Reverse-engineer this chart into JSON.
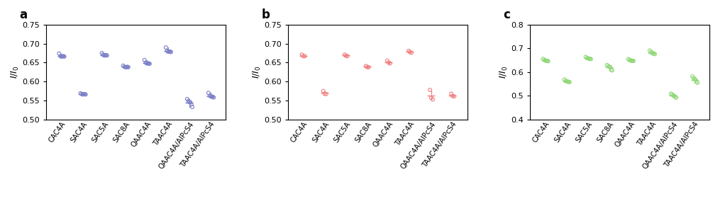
{
  "categories": [
    "CAC4A",
    "SAC4A",
    "SAC5A",
    "SAC8A",
    "QAAC4A",
    "TAAC4A",
    "QAAC4A/AlPcS4",
    "TAAC4A/AlPcS4"
  ],
  "panel_a": {
    "label": "a",
    "color": "#7b80c8",
    "ylim": [
      0.5,
      0.75
    ],
    "yticks": [
      0.5,
      0.55,
      0.6,
      0.65,
      0.7,
      0.75
    ],
    "data": {
      "CAC4A": [
        0.674,
        0.667,
        0.666,
        0.667,
        0.667,
        0.666
      ],
      "SAC4A": [
        0.569,
        0.567,
        0.566,
        0.567,
        0.567,
        0.566
      ],
      "SAC5A": [
        0.675,
        0.671,
        0.669,
        0.669,
        0.67,
        0.669
      ],
      "SAC8A": [
        0.642,
        0.639,
        0.638,
        0.638,
        0.639,
        0.638
      ],
      "QAAC4A": [
        0.657,
        0.65,
        0.648,
        0.648,
        0.648,
        0.647
      ],
      "TAAC4A": [
        0.69,
        0.681,
        0.679,
        0.679,
        0.679,
        0.678
      ],
      "QAAC4A/AlPcS4": [
        0.554,
        0.549,
        0.546,
        0.545,
        0.54,
        0.533
      ],
      "TAAC4A/AlPcS4": [
        0.57,
        0.563,
        0.561,
        0.56,
        0.56,
        0.558
      ]
    },
    "means": {
      "CAC4A": 0.668,
      "SAC4A": 0.567,
      "SAC5A": 0.67,
      "SAC8A": 0.639,
      "QAAC4A": 0.649,
      "TAAC4A": 0.68,
      "QAAC4A/AlPcS4": 0.545,
      "TAAC4A/AlPcS4": 0.562
    }
  },
  "panel_b": {
    "label": "b",
    "color": "#f08080",
    "ylim": [
      0.5,
      0.75
    ],
    "yticks": [
      0.5,
      0.55,
      0.6,
      0.65,
      0.7,
      0.75
    ],
    "data": {
      "CAC4A": [
        0.671,
        0.667,
        0.667
      ],
      "SAC4A": [
        0.575,
        0.568,
        0.567
      ],
      "SAC5A": [
        0.671,
        0.668,
        0.667
      ],
      "SAC8A": [
        0.641,
        0.638,
        0.638
      ],
      "QAAC4A": [
        0.655,
        0.65,
        0.648
      ],
      "TAAC4A": [
        0.681,
        0.678,
        0.676
      ],
      "QAAC4A/AlPcS4": [
        0.578,
        0.557,
        0.553
      ],
      "TAAC4A/AlPcS4": [
        0.568,
        0.562,
        0.561
      ]
    },
    "means": {
      "CAC4A": 0.668,
      "SAC4A": 0.57,
      "SAC5A": 0.669,
      "SAC8A": 0.639,
      "QAAC4A": 0.651,
      "TAAC4A": 0.678,
      "QAAC4A/AlPcS4": 0.563,
      "TAAC4A/AlPcS4": 0.564
    }
  },
  "panel_c": {
    "label": "c",
    "color": "#90d878",
    "ylim": [
      0.4,
      0.8
    ],
    "yticks": [
      0.4,
      0.5,
      0.6,
      0.7,
      0.8
    ],
    "data": {
      "CAC4A": [
        0.656,
        0.651,
        0.649,
        0.648,
        0.647,
        0.646
      ],
      "SAC4A": [
        0.569,
        0.563,
        0.561,
        0.56,
        0.559,
        0.558
      ],
      "SAC5A": [
        0.664,
        0.659,
        0.658,
        0.657,
        0.656,
        0.655
      ],
      "SAC8A": [
        0.63,
        0.625,
        0.622,
        0.621,
        0.61,
        0.607
      ],
      "QAAC4A": [
        0.655,
        0.651,
        0.649,
        0.648,
        0.648,
        0.647
      ],
      "TAAC4A": [
        0.691,
        0.685,
        0.681,
        0.679,
        0.678,
        0.676
      ],
      "QAAC4A/AlPcS4": [
        0.509,
        0.505,
        0.501,
        0.499,
        0.496,
        0.492
      ],
      "TAAC4A/AlPcS4": [
        0.582,
        0.575,
        0.57,
        0.567,
        0.56,
        0.555
      ]
    },
    "means": {
      "CAC4A": 0.649,
      "SAC4A": 0.562,
      "SAC5A": 0.658,
      "SAC8A": 0.619,
      "QAAC4A": 0.65,
      "TAAC4A": 0.681,
      "QAAC4A/AlPcS4": 0.5,
      "TAAC4A/AlPcS4": 0.568
    }
  },
  "figsize": [
    10.05,
    2.91
  ],
  "dpi": 100
}
